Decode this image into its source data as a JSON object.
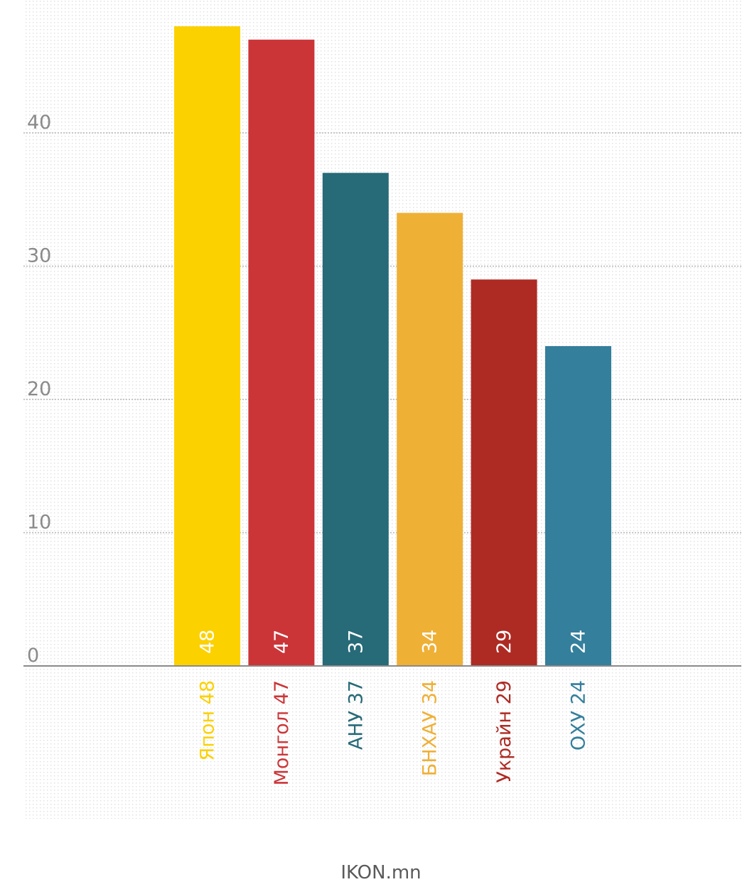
{
  "chart_data": {
    "type": "bar",
    "categories": [
      "Япон",
      "Монгол",
      "АНУ",
      "БНХАУ",
      "Украйн",
      "ОХУ"
    ],
    "values": [
      48,
      47,
      37,
      34,
      29,
      24
    ],
    "bar_value_labels": [
      "48",
      "47",
      "37",
      "34",
      "29",
      "24"
    ],
    "category_labels": [
      "Япон 48",
      "Монгол 47",
      "АНУ 37",
      "БНХАУ 34",
      "Украйн 29",
      "ОХУ 24"
    ],
    "colors": [
      "#fcd100",
      "#cb3538",
      "#276a78",
      "#efb036",
      "#ae2b24",
      "#347f9c"
    ],
    "ylim": [
      0,
      50
    ],
    "yticks": [
      0,
      10,
      20,
      30,
      40
    ],
    "ytick_labels": [
      "0",
      "10",
      "20",
      "30",
      "40"
    ],
    "title": "",
    "xlabel": "",
    "ylabel": "",
    "grid": true
  },
  "footer": {
    "source": "IKON.mn"
  },
  "colors": {
    "axis": "#8a8a8a",
    "grid": "#b5b5b5",
    "dots": "#dedede"
  }
}
